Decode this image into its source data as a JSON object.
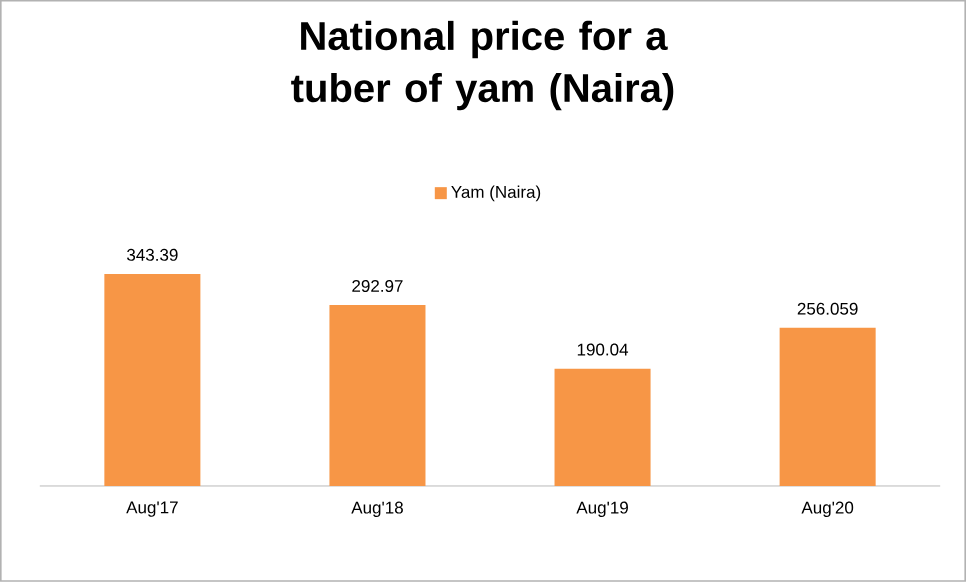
{
  "chart_data": {
    "type": "bar",
    "title": "National price for a tuber of yam (Naira)",
    "categories": [
      "Aug'17",
      "Aug'18",
      "Aug'19",
      "Aug'20"
    ],
    "series": [
      {
        "name": "Yam (Naira)",
        "color": "#f79646",
        "values": [
          343.39,
          292.97,
          190.04,
          256.059
        ]
      }
    ],
    "data_labels": true,
    "legend": "top"
  }
}
